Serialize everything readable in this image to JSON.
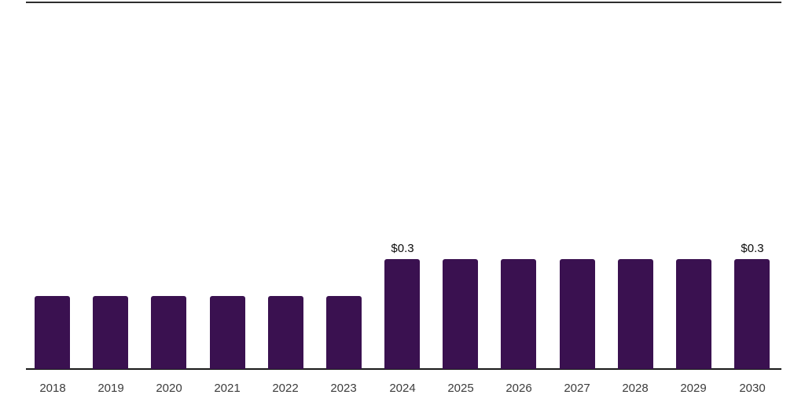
{
  "chart": {
    "bar_color": "#3A1150",
    "axis_color": "#1A1A1A",
    "top_border_color": "#2E2E2E",
    "value_label_color": "#0A0A0A",
    "tick_label_color": "#3C3C3C",
    "background_color": "#FFFFFF"
  },
  "chart_data": {
    "type": "bar",
    "title": "",
    "xlabel": "",
    "ylabel": "",
    "categories": [
      "2018",
      "2019",
      "2020",
      "2021",
      "2022",
      "2023",
      "2024",
      "2025",
      "2026",
      "2027",
      "2028",
      "2029",
      "2030"
    ],
    "values": [
      0.2,
      0.2,
      0.2,
      0.2,
      0.2,
      0.2,
      0.3,
      0.3,
      0.3,
      0.3,
      0.3,
      0.3,
      0.3
    ],
    "data_labels": [
      null,
      null,
      null,
      null,
      null,
      null,
      "$0.3",
      null,
      null,
      null,
      null,
      null,
      "$0.3"
    ],
    "ylim": [
      0,
      1.0
    ],
    "grid": false,
    "legend": false,
    "legend_position": null
  }
}
